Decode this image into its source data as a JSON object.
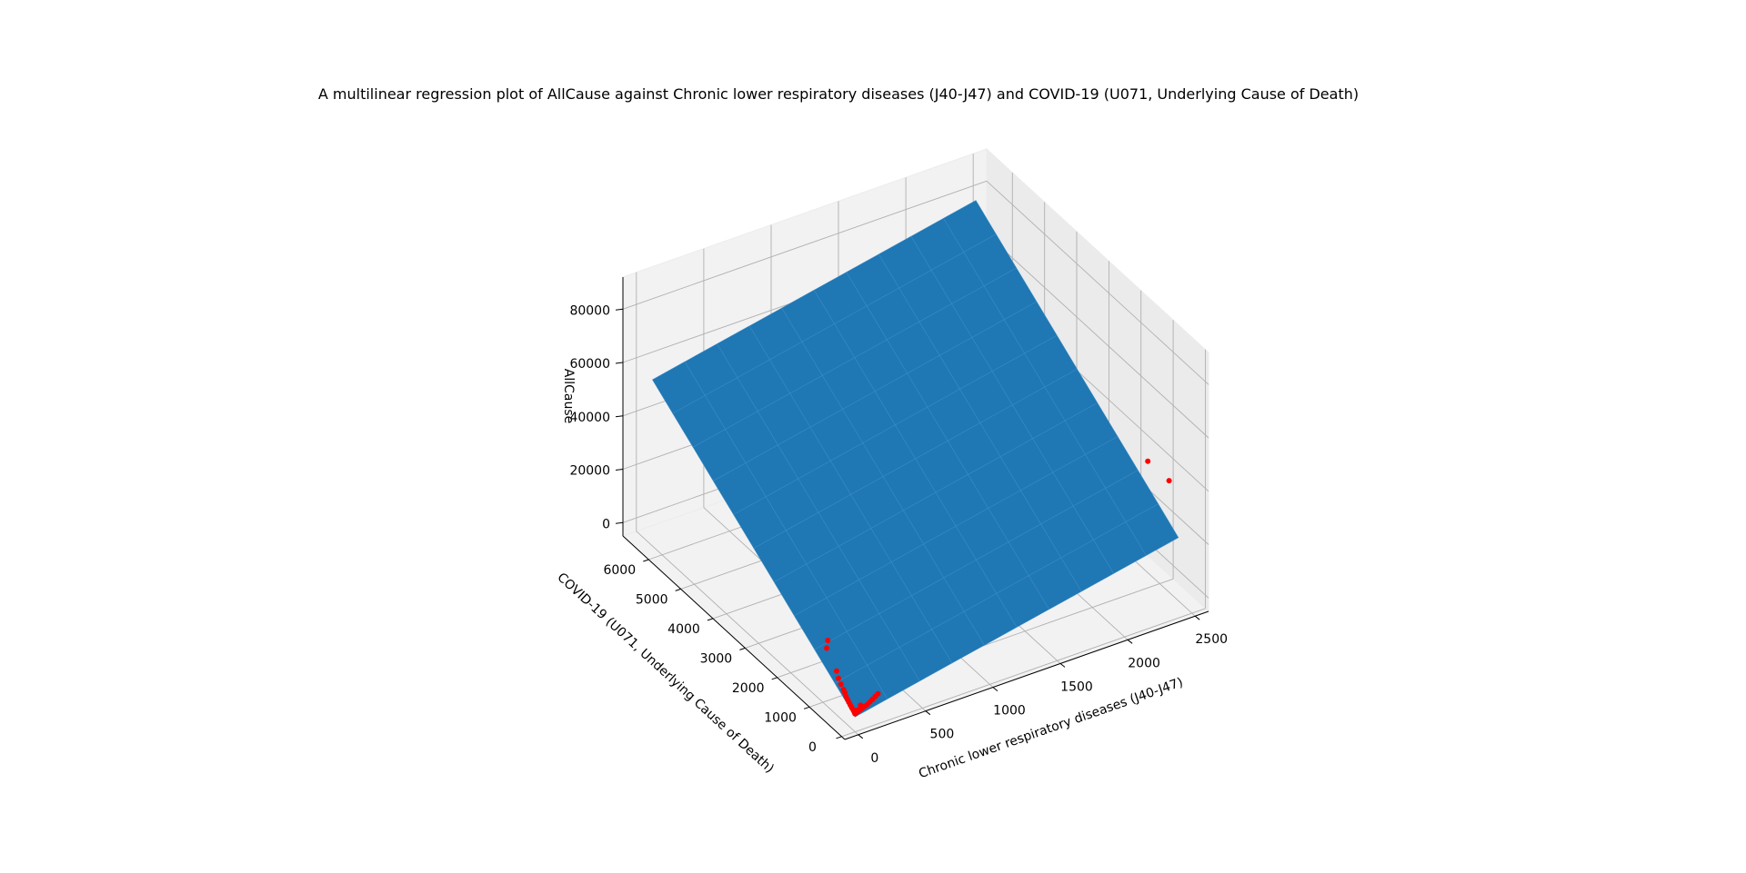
{
  "chart_data": {
    "type": "scatter",
    "subtype": "3d-scatter-with-regression-plane",
    "title": "A multilinear regression plot of AllCause against Chronic lower respiratory diseases (J40-J47) and COVID-19 (U071, Underlying Cause of Death)",
    "xlabel": "Chronic lower respiratory diseases (J40-J47)",
    "ylabel": "COVID-19 (U071, Underlying Cause of Death)",
    "zlabel": "AllCause",
    "xlim": [
      -100,
      2600
    ],
    "ylim": [
      -100,
      6800
    ],
    "zlim": [
      -5000,
      92000
    ],
    "xticks": [
      "0",
      "500",
      "1000",
      "1500",
      "2000",
      "2500"
    ],
    "yticks": [
      "0",
      "1000",
      "2000",
      "3000",
      "4000",
      "5000",
      "6000"
    ],
    "zticks": [
      "0",
      "20000",
      "40000",
      "60000",
      "80000"
    ],
    "grid": true,
    "surface_color": "#1f77b4",
    "point_color": "#ff0000",
    "plane": {
      "intercept": 600,
      "coef_x": 10.2,
      "coef_y": 9.0,
      "x_range": [
        0,
        2400
      ],
      "y_range": [
        0,
        6300
      ]
    },
    "points": [
      {
        "x": 2340,
        "y": 700,
        "z": 47000
      },
      {
        "x": 2450,
        "y": 500,
        "z": 40000
      },
      {
        "x": 60,
        "y": 1100,
        "z": 16000
      },
      {
        "x": 40,
        "y": 1050,
        "z": 14000
      },
      {
        "x": 30,
        "y": 700,
        "z": 9500
      },
      {
        "x": 20,
        "y": 600,
        "z": 8000
      },
      {
        "x": 15,
        "y": 500,
        "z": 7000
      },
      {
        "x": 10,
        "y": 400,
        "z": 6200
      },
      {
        "x": 8,
        "y": 350,
        "z": 5600
      },
      {
        "x": 5,
        "y": 300,
        "z": 4800
      },
      {
        "x": 3,
        "y": 250,
        "z": 4300
      },
      {
        "x": 2,
        "y": 200,
        "z": 3800
      },
      {
        "x": 1,
        "y": 150,
        "z": 3300
      },
      {
        "x": 0,
        "y": 100,
        "z": 2900
      },
      {
        "x": 0,
        "y": 60,
        "z": 2500
      },
      {
        "x": 0,
        "y": 30,
        "z": 2200
      },
      {
        "x": 0,
        "y": 10,
        "z": 1900
      },
      {
        "x": 0,
        "y": 0,
        "z": 1700
      },
      {
        "x": 5,
        "y": 0,
        "z": 1800
      },
      {
        "x": 10,
        "y": 0,
        "z": 2000
      },
      {
        "x": 20,
        "y": 0,
        "z": 2200
      },
      {
        "x": 35,
        "y": 0,
        "z": 2500
      },
      {
        "x": 50,
        "y": 0,
        "z": 2800
      },
      {
        "x": 70,
        "y": 0,
        "z": 3200
      },
      {
        "x": 90,
        "y": 0,
        "z": 3600
      },
      {
        "x": 110,
        "y": 0,
        "z": 4200
      },
      {
        "x": 130,
        "y": 0,
        "z": 4900
      },
      {
        "x": 150,
        "y": 0,
        "z": 5600
      },
      {
        "x": 170,
        "y": 0,
        "z": 6200
      },
      {
        "x": 20,
        "y": 50,
        "z": 2100
      },
      {
        "x": 40,
        "y": 30,
        "z": 2400
      },
      {
        "x": 60,
        "y": 80,
        "z": 3000
      }
    ]
  }
}
